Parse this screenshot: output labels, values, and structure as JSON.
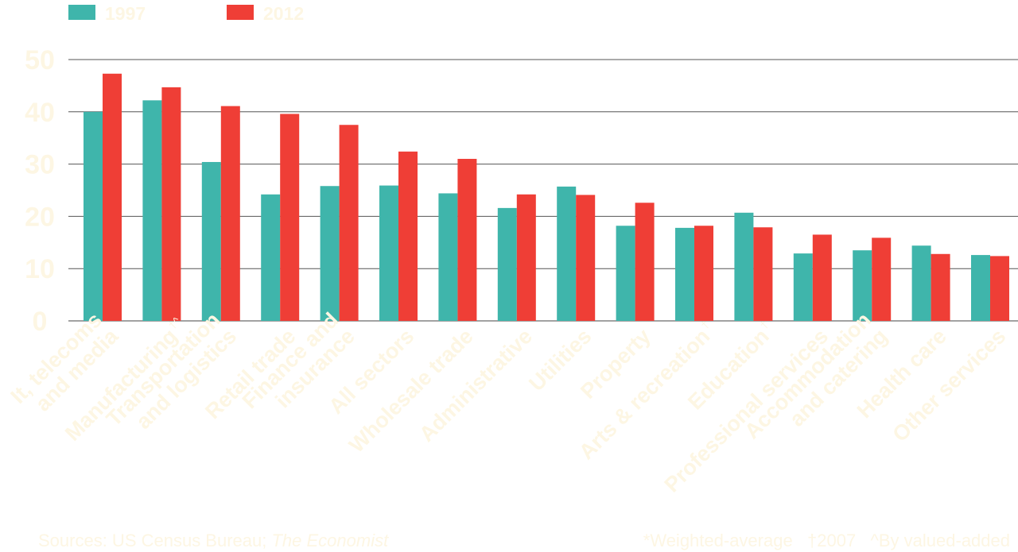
{
  "chart_data": {
    "type": "bar",
    "categories": [
      "It, telecoms and media",
      "Manufacturing^",
      "Transportation and logistics",
      "Retail trade",
      "Finance and insurance",
      "All sectors",
      "Wholesale trade",
      "Administrative",
      "Utilities",
      "Property",
      "Arts & recreation†",
      "Education†",
      "Professional services",
      "Accommodation and catering",
      "Health care",
      "Other services"
    ],
    "category_lines": [
      {
        "lines": [
          "It, telecoms",
          "and media"
        ],
        "sup": ""
      },
      {
        "lines": [
          "Manufacturing"
        ],
        "sup": "†^"
      },
      {
        "lines": [
          "Transportation",
          "and logistics"
        ],
        "sup": ""
      },
      {
        "lines": [
          "Retail trade"
        ],
        "sup": ""
      },
      {
        "lines": [
          "Finance and",
          "insurance"
        ],
        "sup": ""
      },
      {
        "lines": [
          "All sectors"
        ],
        "sup": ""
      },
      {
        "lines": [
          "Wholesale trade"
        ],
        "sup": ""
      },
      {
        "lines": [
          "Administrative"
        ],
        "sup": ""
      },
      {
        "lines": [
          "Utilities"
        ],
        "sup": ""
      },
      {
        "lines": [
          "Property"
        ],
        "sup": ""
      },
      {
        "lines": [
          "Arts & recreation"
        ],
        "sup": "†"
      },
      {
        "lines": [
          "Education"
        ],
        "sup": "†"
      },
      {
        "lines": [
          "Professional services"
        ],
        "sup": ""
      },
      {
        "lines": [
          "Accommodation",
          "and catering"
        ],
        "sup": ""
      },
      {
        "lines": [
          "Health care"
        ],
        "sup": ""
      },
      {
        "lines": [
          "Other services"
        ],
        "sup": ""
      }
    ],
    "series": [
      {
        "name": "1997",
        "color": "#3fb5ab",
        "values": [
          40.0,
          42.2,
          30.4,
          24.2,
          25.8,
          25.9,
          24.4,
          21.6,
          25.7,
          18.2,
          17.8,
          20.7,
          12.9,
          13.5,
          14.4,
          12.6
        ]
      },
      {
        "name": "2012",
        "color": "#ef3e36",
        "values": [
          47.3,
          44.7,
          41.1,
          39.6,
          37.5,
          32.4,
          31.0,
          24.2,
          24.1,
          22.6,
          18.2,
          17.9,
          16.5,
          15.9,
          12.8,
          12.4
        ]
      }
    ],
    "ylim": [
      0,
      50
    ],
    "yticks": [
      0,
      10,
      20,
      30,
      40,
      50
    ],
    "grid": true,
    "legend_position": "top-left",
    "label_color": "#fdf6e3",
    "grid_color": "#555555"
  },
  "footer": {
    "source_prefix": "Sources: US Census Bureau; ",
    "source_italic": "The Economist",
    "notes": "*Weighted-average   †2007   ^By valued-added"
  }
}
